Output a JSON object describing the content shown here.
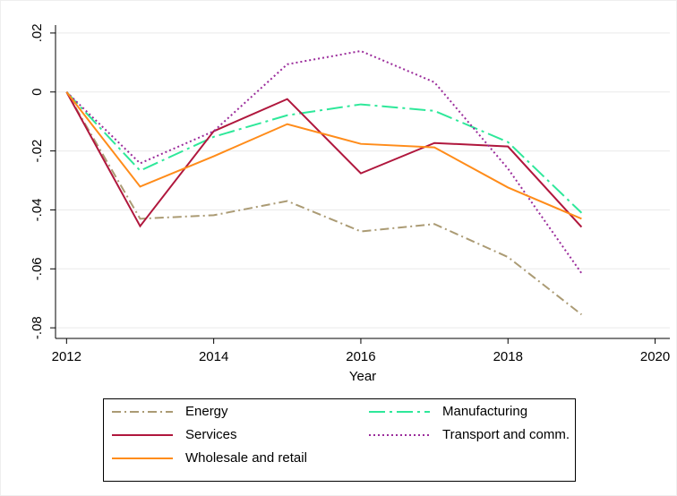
{
  "chart_data": {
    "type": "line",
    "x_label": "Year",
    "x": [
      2012,
      2013,
      2014,
      2015,
      2016,
      2017,
      2018,
      2019
    ],
    "xlim": [
      2011.85,
      2020.2
    ],
    "xticks": [
      2012,
      2014,
      2016,
      2018,
      2020
    ],
    "ylim": [
      -0.0836,
      0.0227
    ],
    "yticks": [
      {
        "value": -0.08,
        "label": "-.08"
      },
      {
        "value": -0.06,
        "label": "-.06"
      },
      {
        "value": -0.04,
        "label": "-.04"
      },
      {
        "value": -0.02,
        "label": "-.02"
      },
      0,
      {
        "value": 0.02,
        "label": ".02"
      }
    ],
    "grid": true,
    "legend": "bottom",
    "series": [
      {
        "name": "Energy",
        "color": "#ab9b74",
        "values": [
          0,
          -0.043,
          -0.0418,
          -0.037,
          -0.0473,
          -0.0448,
          -0.056,
          -0.0755
        ]
      },
      {
        "name": "Manufacturing",
        "color": "#2ee89a",
        "values": [
          0,
          -0.0267,
          -0.0152,
          -0.0079,
          -0.0042,
          -0.0064,
          -0.017,
          -0.041
        ]
      },
      {
        "name": "Services",
        "color": "#b0173d",
        "values": [
          0,
          -0.0455,
          -0.0133,
          -0.0024,
          -0.0276,
          -0.0173,
          -0.0185,
          -0.0458
        ]
      },
      {
        "name": "Transport and comm.",
        "color": "#9b2c9b",
        "values": [
          0,
          -0.0242,
          -0.0133,
          0.0094,
          0.0139,
          0.0033,
          -0.026,
          -0.0615
        ]
      },
      {
        "name": "Wholesale and retail",
        "color": "#ff8c1a",
        "values": [
          0,
          -0.0321,
          -0.0218,
          -0.0109,
          -0.0176,
          -0.0188,
          -0.0324,
          -0.043
        ]
      }
    ]
  }
}
